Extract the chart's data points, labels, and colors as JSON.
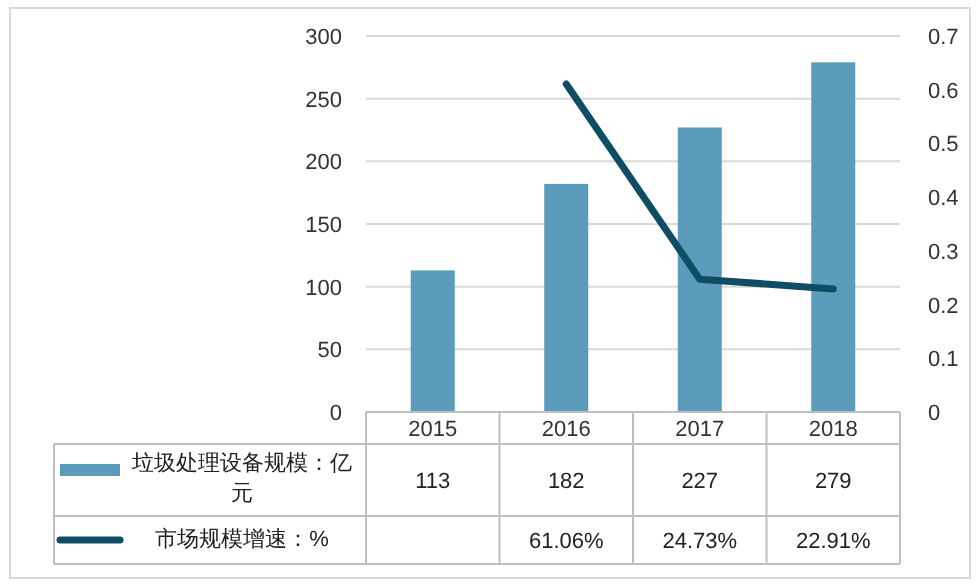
{
  "chart_data": {
    "type": "bar",
    "categories": [
      "2015",
      "2016",
      "2017",
      "2018"
    ],
    "series": [
      {
        "name": "垃圾处理设备规模：亿元",
        "color": "#5b9bbb",
        "values": [
          113,
          182,
          227,
          279
        ],
        "value_labels": [
          "113",
          "182",
          "227",
          "279"
        ]
      },
      {
        "name": "市场规模增速：%",
        "type": "line",
        "axis": "y2",
        "color": "#0e4d64",
        "values": [
          null,
          0.6106,
          0.2473,
          0.2291
        ],
        "value_labels": [
          null,
          "61.06%",
          "24.73%",
          "22.91%"
        ]
      }
    ],
    "ylim": [
      0,
      300
    ],
    "yticks": [
      0,
      50,
      100,
      150,
      200,
      250,
      300
    ],
    "y2lim": [
      0,
      0.7
    ],
    "y2ticks": [
      0,
      0.1,
      0.2,
      0.3,
      0.4,
      0.5,
      0.6,
      0.7
    ],
    "grid": "y",
    "legend": "bottom",
    "marker": "none",
    "line_style": "solid"
  }
}
